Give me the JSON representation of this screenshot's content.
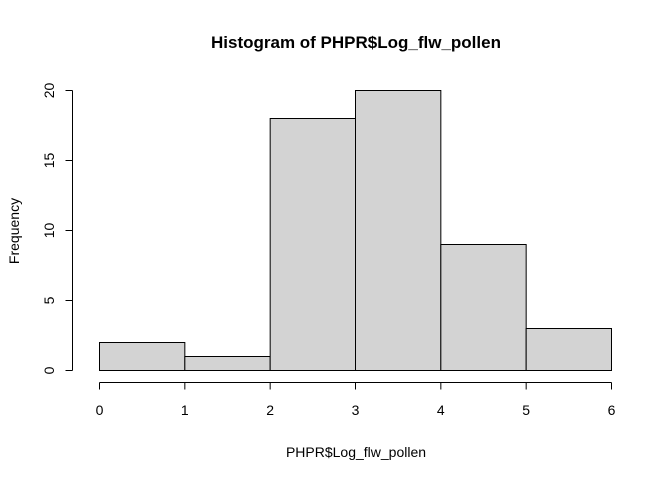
{
  "chart_data": {
    "type": "bar",
    "title": "Histogram of PHPR$Log_flw_pollen",
    "xlabel": "PHPR$Log_flw_pollen",
    "ylabel": "Frequency",
    "bins": [
      {
        "x0": 0,
        "x1": 1,
        "count": 2
      },
      {
        "x0": 1,
        "x1": 2,
        "count": 1
      },
      {
        "x0": 2,
        "x1": 3,
        "count": 18
      },
      {
        "x0": 3,
        "x1": 4,
        "count": 20
      },
      {
        "x0": 4,
        "x1": 5,
        "count": 9
      },
      {
        "x0": 5,
        "x1": 6,
        "count": 3
      }
    ],
    "xlim": [
      0,
      6
    ],
    "ylim": [
      0,
      20
    ],
    "xticks": [
      0,
      1,
      2,
      3,
      4,
      5,
      6
    ],
    "yticks": [
      0,
      5,
      10,
      15,
      20
    ],
    "bar_color": "#d3d3d3",
    "grid": false
  }
}
